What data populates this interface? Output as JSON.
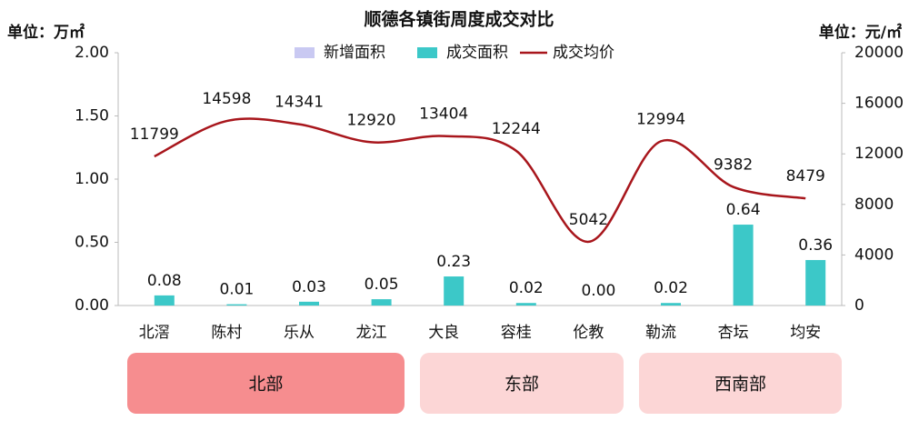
{
  "chart_data": {
    "type": "bar",
    "title": "顺德各镇街周度成交对比",
    "ylabel": "单位：万㎡",
    "y2label": "单位：元/㎡",
    "categories": [
      "北滘",
      "陈村",
      "乐从",
      "龙江",
      "大良",
      "容桂",
      "伦教",
      "勒流",
      "杏坛",
      "均安"
    ],
    "series": [
      {
        "name": "新增面积",
        "color": "#c9c9f2",
        "type": "bar",
        "values": [
          0,
          0,
          0,
          0,
          0,
          0,
          0,
          0,
          0,
          0
        ]
      },
      {
        "name": "成交面积",
        "color": "#3cc8c8",
        "type": "bar",
        "values": [
          0.08,
          0.01,
          0.03,
          0.05,
          0.23,
          0.02,
          0,
          0.02,
          0.64,
          0.36
        ],
        "value_labels": [
          "0.08",
          "0.01",
          "0.03",
          "0.05",
          "0.23",
          "0.02",
          "0.00",
          "0.02",
          "0.64",
          "0.36"
        ]
      },
      {
        "name": "成交均价",
        "color": "#a8161c",
        "type": "line",
        "axis": "y2",
        "values": [
          11799,
          14598,
          14341,
          12920,
          13404,
          12244,
          5042,
          12994,
          9382,
          8479
        ]
      }
    ],
    "ylim": [
      0,
      2
    ],
    "yticks": [
      {
        "value": 0,
        "label": "0.00"
      },
      {
        "value": 0.5,
        "label": "0.50"
      },
      {
        "value": 1,
        "label": "1.00"
      },
      {
        "value": 1.5,
        "label": "1.50"
      },
      {
        "value": 2,
        "label": "2.00"
      }
    ],
    "y2lim": [
      0,
      20000
    ],
    "y2ticks": [
      0,
      4000,
      8000,
      12000,
      16000,
      20000
    ],
    "regions": [
      {
        "label": "北部",
        "color": "#f68d8f"
      },
      {
        "label": "东部",
        "color": "#fcd6d6"
      },
      {
        "label": "西南部",
        "color": "#fcd6d6"
      }
    ]
  }
}
